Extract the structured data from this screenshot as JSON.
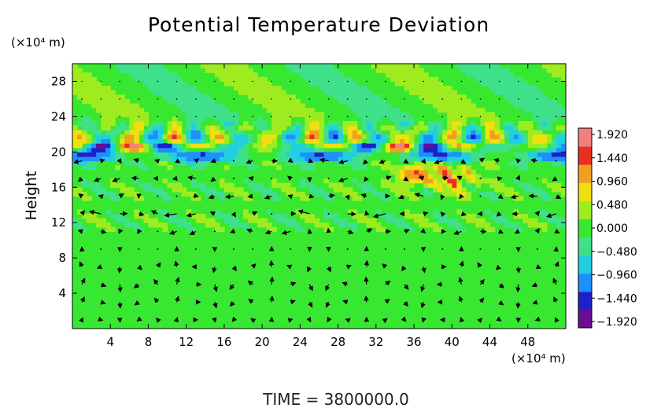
{
  "chart_data": {
    "type": "heatmap",
    "title": "Potential Temperature Deviation",
    "ylabel": "Height",
    "y_unit_label": "(×10⁴ m)",
    "x_unit_label": "(×10⁴ m)",
    "xlim": [
      0,
      52
    ],
    "ylim": [
      0,
      30
    ],
    "x_ticks": [
      4,
      8,
      12,
      16,
      20,
      24,
      28,
      32,
      36,
      40,
      44,
      48
    ],
    "y_ticks": [
      4,
      8,
      12,
      16,
      20,
      24,
      28
    ],
    "colorbar": {
      "min": -2.0,
      "max": 2.0,
      "tick_labels": [
        "1.920",
        "1.440",
        "0.960",
        "0.480",
        "0.000",
        "−0.480",
        "−0.960",
        "−1.440",
        "−1.920"
      ],
      "colors": [
        "#6a0d91",
        "#2020c8",
        "#1e8fff",
        "#20d0e0",
        "#3fe08a",
        "#38e830",
        "#9eec20",
        "#f0e010",
        "#f0a020",
        "#e83020",
        "#f08080"
      ]
    },
    "field_features": [
      {
        "name": "tropopause_wave_band",
        "y_range": [
          18,
          23
        ],
        "value_range": [
          -1.92,
          1.92
        ]
      },
      {
        "name": "positive_anomaly_patches",
        "x_range": [
          34,
          44
        ],
        "y_range": [
          15,
          20
        ],
        "peak": 1.92
      }
    ],
    "wind_vectors": {
      "overlay": true,
      "rows_y": [
        1,
        3,
        5,
        7,
        9,
        11,
        13,
        15,
        17,
        19
      ],
      "x_step": 2
    }
  },
  "time_label": "TIME  =  3800000.0"
}
